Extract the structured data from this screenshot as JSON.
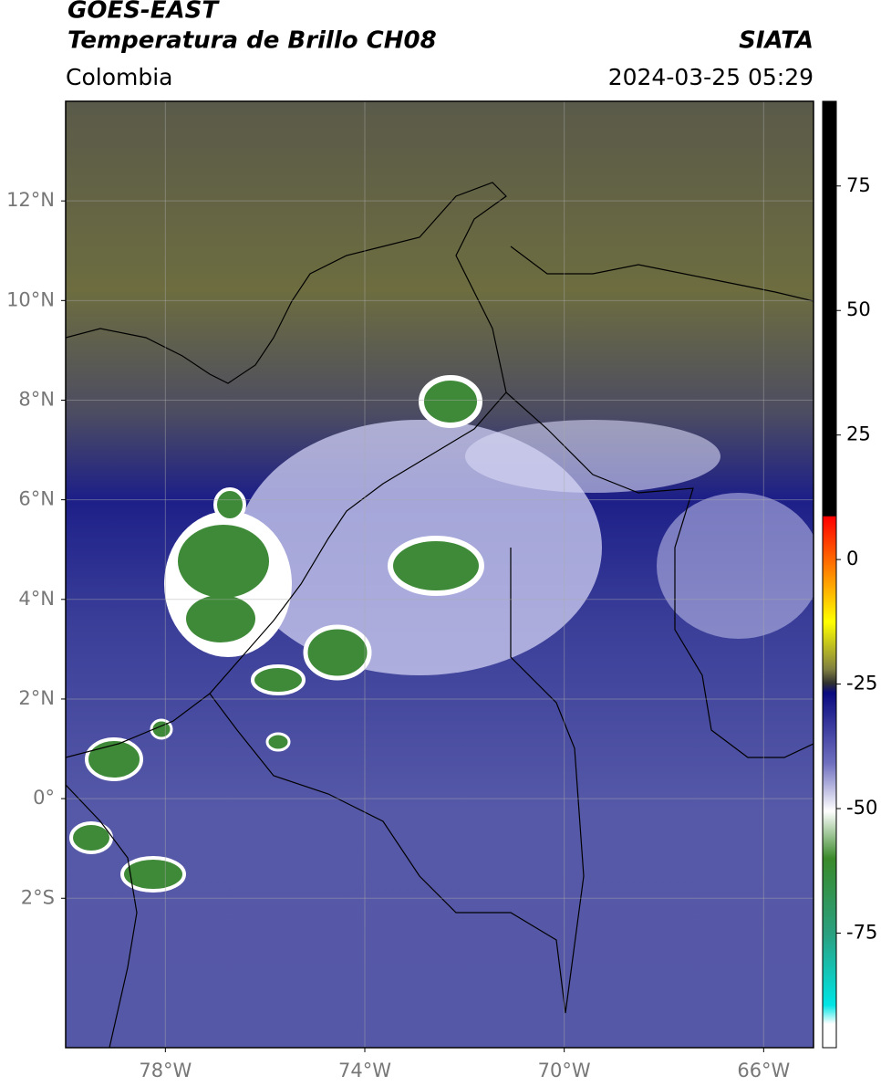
{
  "header": {
    "satellite": "GOES-EAST",
    "product": "Temperatura de Brillo CH08",
    "agency": "SIATA",
    "region": "Colombia",
    "datetime": "2024-03-25 05:29"
  },
  "map": {
    "xlim": [
      -80,
      -65
    ],
    "ylim": [
      -5,
      14
    ],
    "xticks": [
      {
        "value": -78,
        "label": "78°W"
      },
      {
        "value": -74,
        "label": "74°W"
      },
      {
        "value": -70,
        "label": "70°W"
      },
      {
        "value": -66,
        "label": "66°W"
      }
    ],
    "yticks": [
      {
        "value": 12,
        "label": "12°N"
      },
      {
        "value": 10,
        "label": "10°N"
      },
      {
        "value": 8,
        "label": "8°N"
      },
      {
        "value": 6,
        "label": "6°N"
      },
      {
        "value": 4,
        "label": "4°N"
      },
      {
        "value": 2,
        "label": "2°N"
      },
      {
        "value": 0,
        "label": "0°"
      },
      {
        "value": -2,
        "label": "2°S"
      }
    ],
    "grid": true
  },
  "colorbar": {
    "lim": [
      -98,
      92
    ],
    "ticks": [
      75,
      50,
      25,
      0,
      -25,
      -50,
      -75
    ]
  }
}
